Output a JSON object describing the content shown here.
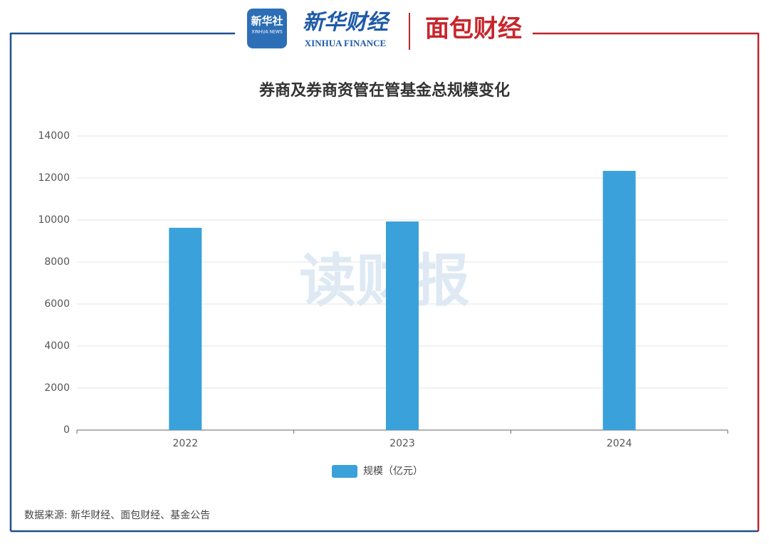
{
  "branding": {
    "xinhua_icon": "新华社",
    "xinhua_icon_sub": "XINHUA NEWS",
    "xinhua_finance": "新华财经",
    "xinhua_finance_en": "XINHUA FINANCE",
    "mianbao": "面包财经"
  },
  "watermark": "读财报",
  "chart_data": {
    "type": "bar",
    "title": "券商及券商资管在管基金总规模变化",
    "categories": [
      "2022",
      "2023",
      "2024"
    ],
    "series": [
      {
        "name": "规模（亿元）",
        "color": "#3ba1da",
        "values": [
          9630,
          9930,
          12340
        ]
      }
    ],
    "ylim": [
      0,
      14000
    ],
    "yticks": [
      0,
      2000,
      4000,
      6000,
      8000,
      10000,
      12000,
      14000
    ],
    "grid": true,
    "legend": "bottom"
  },
  "source": "数据来源: 新华财经、面包财经、基金公告"
}
